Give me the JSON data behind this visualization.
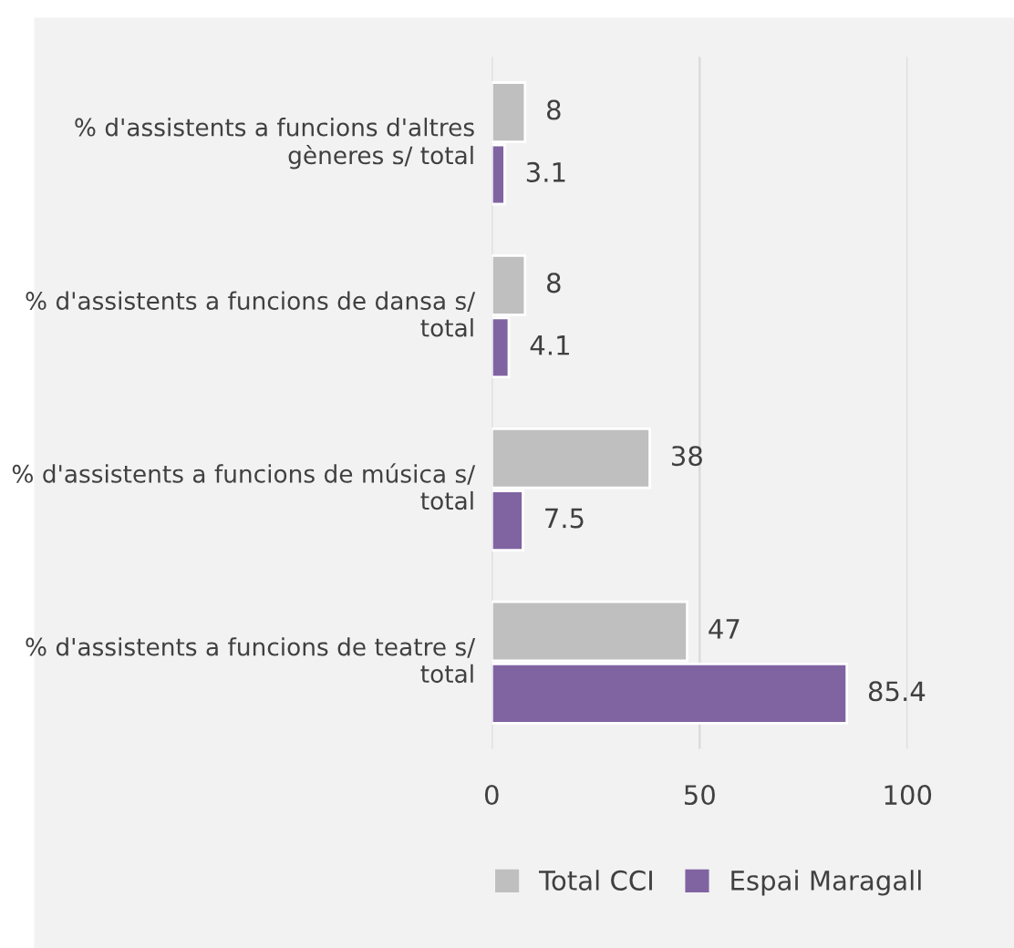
{
  "chart_data": {
    "type": "bar",
    "orientation": "horizontal",
    "categories": [
      "% d'assistents a funcions d'altres gèneres s/ total",
      "% d'assistents a funcions de dansa s/ total",
      "% d'assistents a funcions de música s/ total",
      "% d'assistents a funcions de teatre s/ total"
    ],
    "series": [
      {
        "name": "Total CCI",
        "color": "#bfbfbf",
        "values": [
          8,
          8,
          38,
          47
        ]
      },
      {
        "name": "Espai Maragall",
        "color": "#8064a2",
        "values": [
          3.1,
          4.1,
          7.5,
          85.4
        ]
      }
    ],
    "xlim": [
      0,
      100
    ],
    "xticks": [
      0,
      50,
      100
    ],
    "grid": "x",
    "legend": "bottom",
    "data_labels": true
  }
}
